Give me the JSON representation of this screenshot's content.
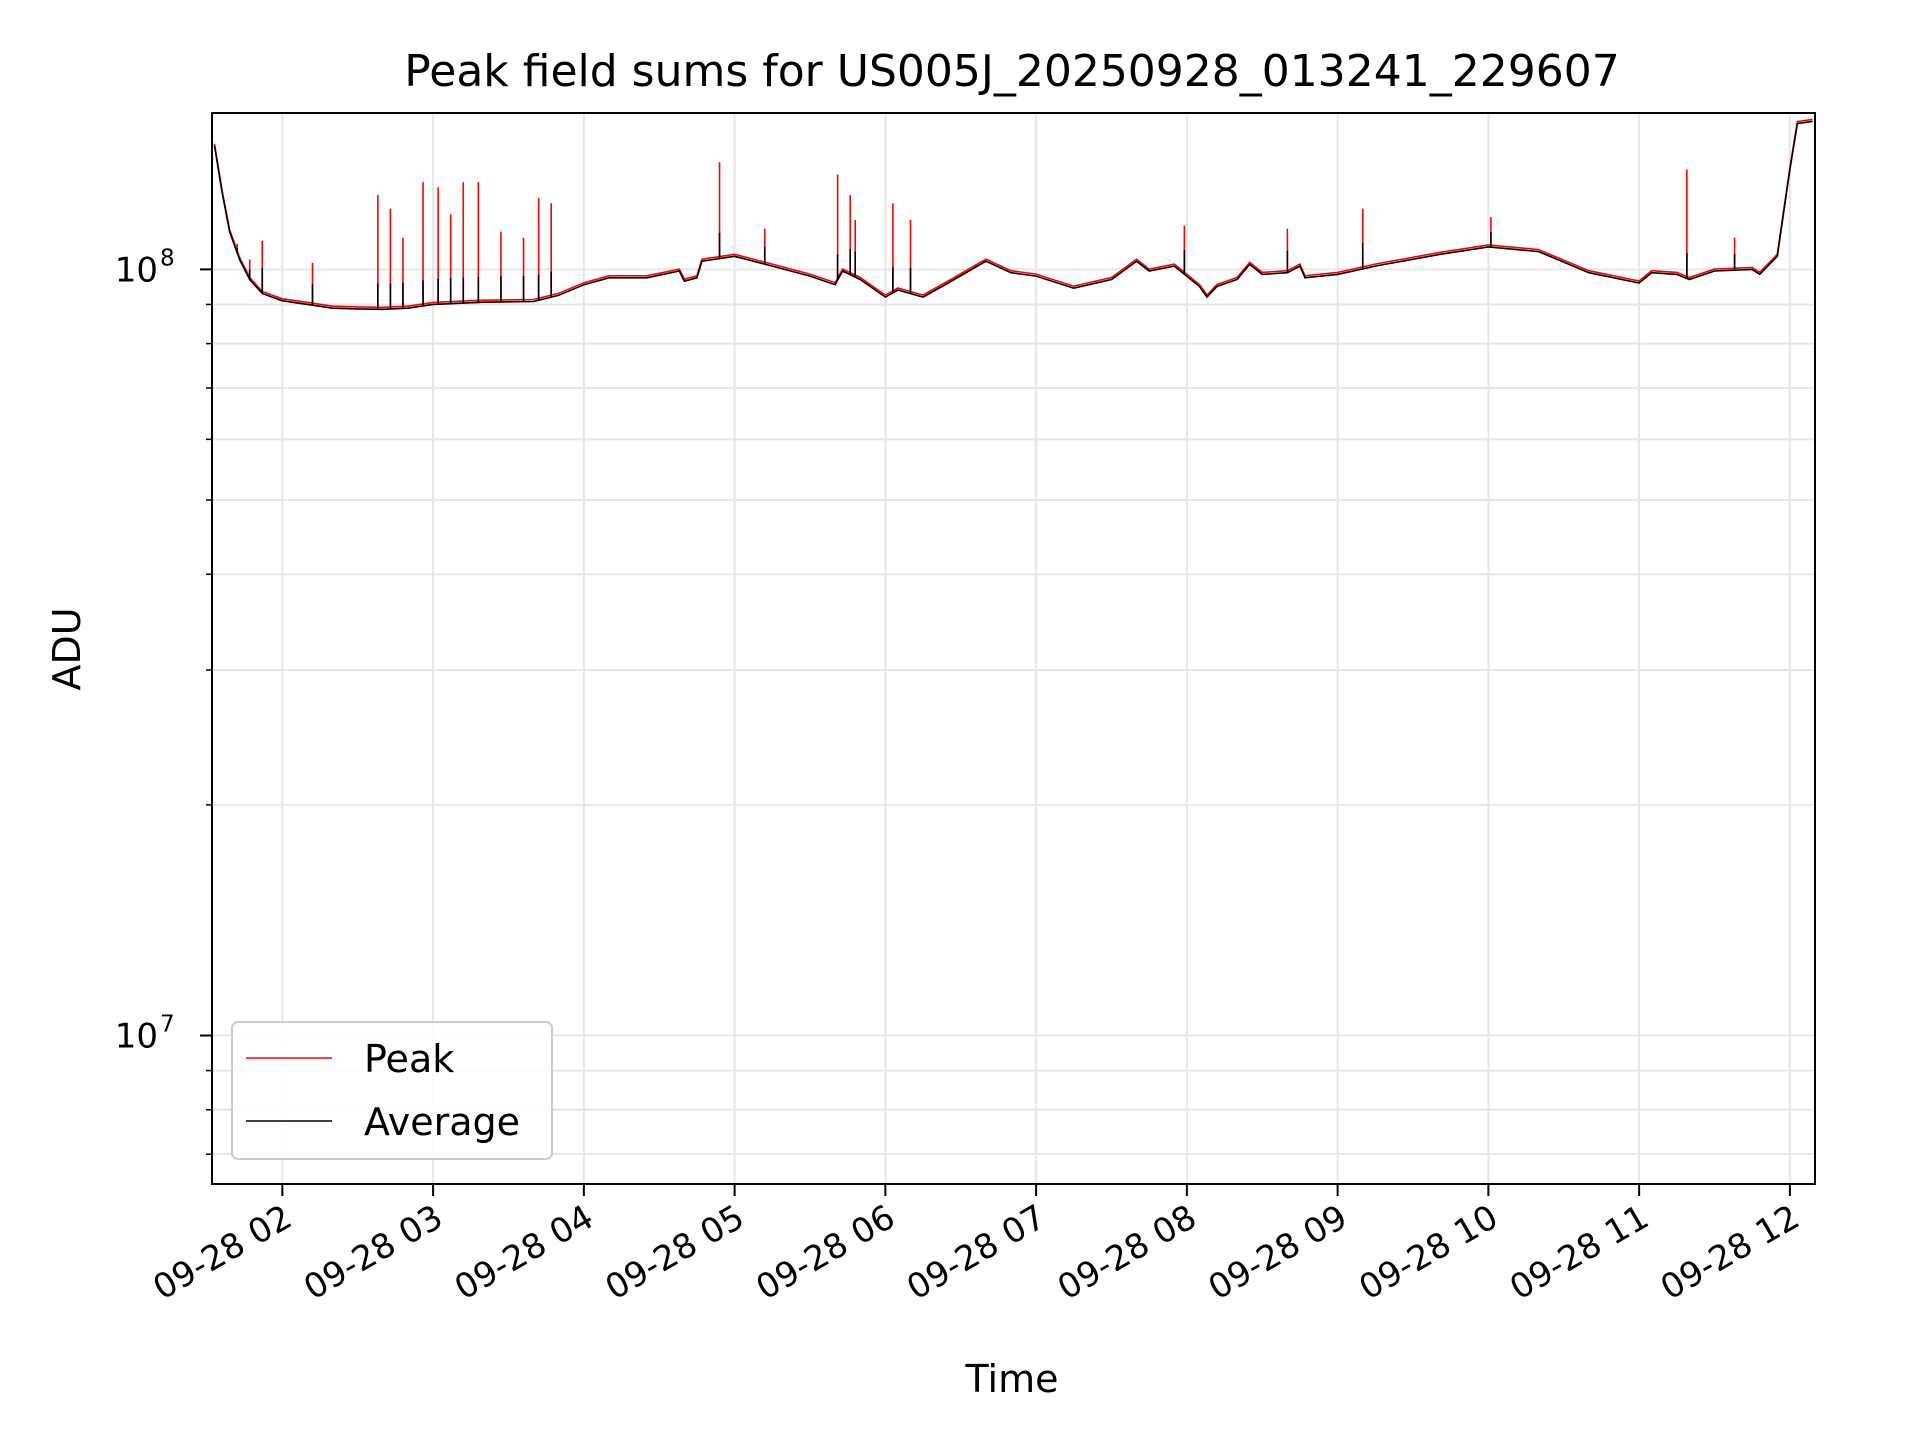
{
  "chart_data": {
    "type": "line",
    "title": "Peak field sums for US005J_20250928_013241_229607",
    "xlabel": "Time",
    "ylabel": "ADU",
    "yscale": "log",
    "ylim": [
      6400000,
      160000000
    ],
    "xlim": [
      "2025-09-28 01:32",
      "2025-09-28 12:10"
    ],
    "grid": true,
    "legend": "lower-left",
    "colors": {
      "Peak": "#ff0000",
      "Average": "#000000"
    },
    "x_ticks": [
      {
        "value": "2025-09-28 02:00",
        "label": "09-28 02"
      },
      {
        "value": "2025-09-28 03:00",
        "label": "09-28 03"
      },
      {
        "value": "2025-09-28 04:00",
        "label": "09-28 04"
      },
      {
        "value": "2025-09-28 05:00",
        "label": "09-28 05"
      },
      {
        "value": "2025-09-28 06:00",
        "label": "09-28 06"
      },
      {
        "value": "2025-09-28 07:00",
        "label": "09-28 07"
      },
      {
        "value": "2025-09-28 08:00",
        "label": "09-28 08"
      },
      {
        "value": "2025-09-28 09:00",
        "label": "09-28 09"
      },
      {
        "value": "2025-09-28 10:00",
        "label": "09-28 10"
      },
      {
        "value": "2025-09-28 11:00",
        "label": "09-28 11"
      },
      {
        "value": "2025-09-28 12:00",
        "label": "09-28 12"
      }
    ],
    "y_ticks": [
      {
        "value": 10000000,
        "base": "10",
        "exp": "7"
      },
      {
        "value": 100000000,
        "base": "10",
        "exp": "8"
      }
    ],
    "series": [
      {
        "name": "Average",
        "points": [
          [
            "2025-09-28 01:33",
            145000000
          ],
          [
            "2025-09-28 01:36",
            126000000
          ],
          [
            "2025-09-28 01:39",
            112000000
          ],
          [
            "2025-09-28 01:43",
            103000000
          ],
          [
            "2025-09-28 01:47",
            97000000
          ],
          [
            "2025-09-28 01:52",
            93000000
          ],
          [
            "2025-09-28 02:00",
            91000000
          ],
          [
            "2025-09-28 02:10",
            90000000
          ],
          [
            "2025-09-28 02:20",
            89000000
          ],
          [
            "2025-09-28 02:30",
            88800000
          ],
          [
            "2025-09-28 02:40",
            88700000
          ],
          [
            "2025-09-28 02:50",
            89000000
          ],
          [
            "2025-09-28 03:00",
            90000000
          ],
          [
            "2025-09-28 03:20",
            90600000
          ],
          [
            "2025-09-28 03:40",
            90800000
          ],
          [
            "2025-09-28 03:50",
            92500000
          ],
          [
            "2025-09-28 04:00",
            95500000
          ],
          [
            "2025-09-28 04:10",
            97500000
          ],
          [
            "2025-09-28 04:25",
            97500000
          ],
          [
            "2025-09-28 04:38",
            99500000
          ],
          [
            "2025-09-28 04:40",
            96500000
          ],
          [
            "2025-09-28 04:45",
            97500000
          ],
          [
            "2025-09-28 04:47",
            102500000
          ],
          [
            "2025-09-28 05:00",
            104000000
          ],
          [
            "2025-09-28 05:15",
            101000000
          ],
          [
            "2025-09-28 05:30",
            98000000
          ],
          [
            "2025-09-28 05:40",
            95500000
          ],
          [
            "2025-09-28 05:43",
            99500000
          ],
          [
            "2025-09-28 05:50",
            97000000
          ],
          [
            "2025-09-28 06:00",
            92000000
          ],
          [
            "2025-09-28 06:05",
            94000000
          ],
          [
            "2025-09-28 06:15",
            92000000
          ],
          [
            "2025-09-28 06:25",
            96000000
          ],
          [
            "2025-09-28 06:40",
            102500000
          ],
          [
            "2025-09-28 06:50",
            99000000
          ],
          [
            "2025-09-28 07:00",
            98000000
          ],
          [
            "2025-09-28 07:15",
            94500000
          ],
          [
            "2025-09-28 07:30",
            97000000
          ],
          [
            "2025-09-28 07:40",
            102500000
          ],
          [
            "2025-09-28 07:45",
            99500000
          ],
          [
            "2025-09-28 07:55",
            101000000
          ],
          [
            "2025-09-28 08:05",
            95000000
          ],
          [
            "2025-09-28 08:08",
            92000000
          ],
          [
            "2025-09-28 08:12",
            95000000
          ],
          [
            "2025-09-28 08:20",
            97000000
          ],
          [
            "2025-09-28 08:25",
            101500000
          ],
          [
            "2025-09-28 08:30",
            98500000
          ],
          [
            "2025-09-28 08:40",
            99000000
          ],
          [
            "2025-09-28 08:45",
            101000000
          ],
          [
            "2025-09-28 08:47",
            97500000
          ],
          [
            "2025-09-28 09:00",
            98500000
          ],
          [
            "2025-09-28 09:15",
            101000000
          ],
          [
            "2025-09-28 09:40",
            104500000
          ],
          [
            "2025-09-28 10:00",
            107000000
          ],
          [
            "2025-09-28 10:20",
            105500000
          ],
          [
            "2025-09-28 10:40",
            99000000
          ],
          [
            "2025-09-28 11:00",
            96000000
          ],
          [
            "2025-09-28 11:05",
            99000000
          ],
          [
            "2025-09-28 11:15",
            98500000
          ],
          [
            "2025-09-28 11:20",
            97000000
          ],
          [
            "2025-09-28 11:30",
            99500000
          ],
          [
            "2025-09-28 11:45",
            100000000
          ],
          [
            "2025-09-28 11:48",
            98500000
          ],
          [
            "2025-09-28 11:55",
            104000000
          ],
          [
            "2025-09-28 12:00",
            135000000
          ],
          [
            "2025-09-28 12:03",
            155000000
          ],
          [
            "2025-09-28 12:09",
            156000000
          ]
        ]
      },
      {
        "name": "Peak",
        "spikes": [
          [
            "2025-09-28 01:42",
            108000000
          ],
          [
            "2025-09-28 01:47",
            103000000
          ],
          [
            "2025-09-28 01:52",
            109000000
          ],
          [
            "2025-09-28 02:12",
            102000000
          ],
          [
            "2025-09-28 02:38",
            125000000
          ],
          [
            "2025-09-28 02:43",
            120000000
          ],
          [
            "2025-09-28 02:48",
            110000000
          ],
          [
            "2025-09-28 02:56",
            130000000
          ],
          [
            "2025-09-28 03:02",
            128000000
          ],
          [
            "2025-09-28 03:07",
            118000000
          ],
          [
            "2025-09-28 03:12",
            130000000
          ],
          [
            "2025-09-28 03:18",
            130000000
          ],
          [
            "2025-09-28 03:27",
            112000000
          ],
          [
            "2025-09-28 03:36",
            110000000
          ],
          [
            "2025-09-28 03:42",
            124000000
          ],
          [
            "2025-09-28 03:47",
            122000000
          ],
          [
            "2025-09-28 04:54",
            138000000
          ],
          [
            "2025-09-28 05:12",
            113000000
          ],
          [
            "2025-09-28 05:41",
            133000000
          ],
          [
            "2025-09-28 05:46",
            125000000
          ],
          [
            "2025-09-28 05:48",
            116000000
          ],
          [
            "2025-09-28 06:03",
            122000000
          ],
          [
            "2025-09-28 06:10",
            116000000
          ],
          [
            "2025-09-28 07:59",
            114000000
          ],
          [
            "2025-09-28 08:40",
            113000000
          ],
          [
            "2025-09-28 09:10",
            120000000
          ],
          [
            "2025-09-28 10:01",
            117000000
          ],
          [
            "2025-09-28 11:19",
            135000000
          ],
          [
            "2025-09-28 11:38",
            110000000
          ]
        ]
      }
    ]
  }
}
